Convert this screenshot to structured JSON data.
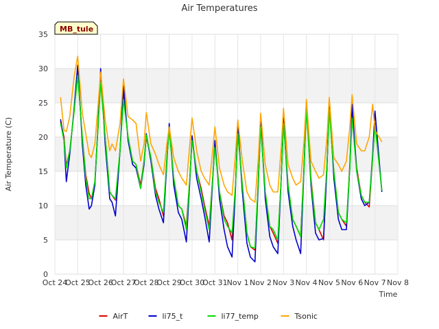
{
  "chart_data": {
    "type": "line",
    "title": "Air Temperatures",
    "xlabel": "Time",
    "ylabel": "Air Temperature (C)",
    "ylim": [
      0,
      35
    ],
    "yticks": [
      0,
      5,
      10,
      15,
      20,
      25,
      30,
      35
    ],
    "xticks": [
      "Oct 24",
      "Oct 25",
      "Oct 26",
      "Oct 27",
      "Oct 28",
      "Oct 29",
      "Oct 30",
      "Oct 31",
      "Nov 1",
      "Nov 2",
      "Nov 3",
      "Nov 4",
      "Nov 5",
      "Nov 6",
      "Nov 7",
      "Nov 8"
    ],
    "x_unit": "days after Oct 24",
    "xlim": [
      0,
      15
    ],
    "grid": true,
    "alternating_bands": true,
    "legend_position": "bottom-center",
    "station_tag": "MB_tule",
    "series": [
      {
        "name": "AirT",
        "color": "#dd0000",
        "x": [
          0.25,
          0.4,
          0.5,
          0.65,
          0.85,
          1.0,
          1.2,
          1.35,
          1.5,
          1.6,
          1.75,
          1.9,
          2.0,
          2.2,
          2.4,
          2.5,
          2.65,
          2.85,
          3.0,
          3.2,
          3.4,
          3.55,
          3.75,
          3.9,
          4.0,
          4.2,
          4.4,
          4.55,
          4.75,
          4.9,
          5.0,
          5.2,
          5.4,
          5.55,
          5.75,
          5.9,
          6.0,
          6.2,
          6.4,
          6.55,
          6.75,
          6.9,
          7.0,
          7.2,
          7.4,
          7.55,
          7.75,
          7.9,
          8.0,
          8.2,
          8.4,
          8.55,
          8.75,
          8.9,
          9.0,
          9.2,
          9.4,
          9.55,
          9.75,
          9.9,
          10.0,
          10.2,
          10.4,
          10.55,
          10.75,
          10.9,
          11.0,
          11.2,
          11.4,
          11.55,
          11.75,
          11.9,
          12.0,
          12.2,
          12.4,
          12.55,
          12.75,
          12.9,
          13.0,
          13.2,
          13.4,
          13.55,
          13.75,
          13.9,
          14.0,
          14.3
        ],
        "values": [
          22.3,
          20.0,
          15.8,
          18.0,
          24.0,
          29.5,
          20.0,
          14.5,
          11.8,
          11.0,
          13.5,
          22.0,
          29.2,
          20.0,
          12.0,
          11.5,
          10.8,
          18.0,
          26.2,
          20.0,
          16.5,
          16.0,
          13.0,
          16.5,
          20.0,
          17.0,
          12.5,
          11.0,
          8.5,
          17.0,
          21.5,
          14.0,
          10.0,
          9.5,
          7.0,
          14.0,
          19.8,
          15.0,
          12.5,
          10.0,
          7.0,
          14.0,
          19.0,
          12.0,
          8.5,
          7.5,
          5.0,
          13.0,
          21.0,
          13.0,
          6.0,
          4.0,
          3.5,
          14.0,
          22.0,
          12.0,
          7.0,
          6.0,
          4.5,
          14.0,
          22.5,
          13.0,
          8.0,
          7.0,
          5.5,
          16.0,
          24.5,
          14.0,
          7.5,
          6.5,
          5.0,
          16.0,
          24.3,
          15.0,
          9.0,
          8.0,
          7.0,
          16.0,
          23.5,
          15.5,
          11.5,
          10.5,
          9.8,
          17.0,
          22.0,
          12.2
        ]
      },
      {
        "name": "li75_t",
        "color": "#0000cc",
        "x": [
          0.25,
          0.4,
          0.5,
          0.65,
          0.85,
          1.0,
          1.2,
          1.35,
          1.5,
          1.6,
          1.75,
          1.9,
          2.0,
          2.2,
          2.4,
          2.5,
          2.65,
          2.85,
          3.0,
          3.2,
          3.4,
          3.55,
          3.75,
          3.9,
          4.0,
          4.2,
          4.4,
          4.55,
          4.75,
          4.9,
          5.0,
          5.2,
          5.4,
          5.55,
          5.75,
          5.9,
          6.0,
          6.2,
          6.4,
          6.55,
          6.75,
          6.9,
          7.0,
          7.2,
          7.4,
          7.55,
          7.75,
          7.9,
          8.0,
          8.2,
          8.4,
          8.55,
          8.75,
          8.9,
          9.0,
          9.2,
          9.4,
          9.55,
          9.75,
          9.9,
          10.0,
          10.2,
          10.4,
          10.55,
          10.75,
          10.9,
          11.0,
          11.2,
          11.4,
          11.55,
          11.75,
          11.9,
          12.0,
          12.2,
          12.4,
          12.55,
          12.75,
          12.9,
          13.0,
          13.2,
          13.4,
          13.55,
          13.75,
          13.9,
          14.0,
          14.3
        ],
        "values": [
          22.6,
          19.5,
          13.5,
          17.5,
          24.5,
          30.5,
          19.0,
          13.0,
          9.5,
          10.0,
          13.0,
          22.5,
          30.0,
          19.0,
          11.0,
          10.5,
          8.5,
          18.0,
          27.5,
          19.5,
          16.0,
          15.5,
          12.5,
          16.0,
          20.5,
          16.5,
          11.5,
          9.5,
          7.5,
          16.5,
          22.0,
          13.0,
          9.0,
          8.0,
          4.7,
          13.5,
          20.2,
          14.0,
          11.0,
          8.5,
          4.7,
          13.5,
          19.5,
          11.0,
          6.5,
          4.0,
          2.5,
          12.5,
          21.8,
          12.0,
          4.5,
          2.5,
          1.8,
          13.5,
          22.5,
          11.0,
          5.5,
          4.0,
          3.0,
          14.0,
          22.8,
          12.0,
          7.0,
          5.0,
          3.0,
          15.5,
          25.2,
          13.0,
          6.0,
          5.0,
          5.2,
          15.5,
          25.4,
          14.0,
          8.0,
          6.5,
          6.5,
          15.5,
          24.8,
          15.0,
          11.0,
          10.0,
          10.5,
          17.5,
          23.8,
          12.0
        ]
      },
      {
        "name": "li77_temp",
        "color": "#00dd00",
        "x": [
          0.25,
          0.4,
          0.5,
          0.65,
          0.85,
          1.0,
          1.2,
          1.35,
          1.5,
          1.6,
          1.75,
          1.9,
          2.0,
          2.2,
          2.4,
          2.5,
          2.65,
          2.85,
          3.0,
          3.2,
          3.4,
          3.55,
          3.75,
          3.9,
          4.0,
          4.2,
          4.4,
          4.55,
          4.75,
          4.9,
          5.0,
          5.2,
          5.4,
          5.55,
          5.75,
          5.9,
          6.0,
          6.2,
          6.4,
          6.55,
          6.75,
          6.9,
          7.0,
          7.2,
          7.4,
          7.55,
          7.75,
          7.9,
          8.0,
          8.2,
          8.4,
          8.55,
          8.75,
          8.9,
          9.0,
          9.2,
          9.4,
          9.55,
          9.75,
          9.9,
          10.0,
          10.2,
          10.4,
          10.55,
          10.75,
          10.9,
          11.0,
          11.2,
          11.4,
          11.55,
          11.75,
          11.9,
          12.0,
          12.2,
          12.4,
          12.55,
          12.75,
          12.9,
          13.0,
          13.2,
          13.4,
          13.55,
          13.75,
          13.9,
          14.0,
          14.3
        ],
        "values": [
          22.0,
          19.5,
          15.5,
          18.0,
          24.0,
          29.0,
          20.0,
          14.0,
          11.0,
          11.0,
          13.5,
          22.0,
          28.0,
          20.0,
          12.0,
          11.5,
          11.0,
          18.0,
          25.5,
          20.0,
          16.5,
          16.0,
          12.5,
          16.5,
          20.3,
          17.0,
          12.0,
          10.5,
          9.0,
          17.0,
          21.0,
          14.0,
          10.0,
          9.5,
          6.5,
          14.0,
          19.5,
          15.0,
          12.0,
          9.5,
          6.5,
          14.0,
          18.5,
          12.0,
          8.0,
          7.0,
          6.0,
          13.0,
          20.5,
          13.0,
          6.0,
          4.0,
          3.8,
          14.0,
          21.5,
          12.0,
          7.0,
          6.5,
          5.0,
          14.0,
          22.0,
          13.0,
          8.0,
          7.0,
          5.5,
          15.5,
          24.0,
          13.5,
          7.5,
          6.5,
          8.0,
          16.0,
          24.0,
          15.0,
          9.0,
          8.0,
          7.5,
          15.5,
          22.8,
          15.0,
          11.5,
          10.5,
          10.5,
          17.0,
          21.8,
          12.2
        ]
      },
      {
        "name": "Tsonic",
        "color": "#ffa500",
        "x": [
          0.25,
          0.4,
          0.5,
          0.65,
          0.85,
          1.0,
          1.2,
          1.35,
          1.5,
          1.6,
          1.75,
          1.9,
          2.0,
          2.2,
          2.4,
          2.5,
          2.65,
          2.85,
          3.0,
          3.2,
          3.4,
          3.55,
          3.75,
          3.9,
          4.0,
          4.2,
          4.4,
          4.55,
          4.75,
          4.9,
          5.0,
          5.2,
          5.4,
          5.55,
          5.75,
          5.9,
          6.0,
          6.2,
          6.4,
          6.55,
          6.75,
          6.9,
          7.0,
          7.2,
          7.4,
          7.55,
          7.75,
          7.9,
          8.0,
          8.2,
          8.4,
          8.55,
          8.75,
          8.9,
          9.0,
          9.2,
          9.4,
          9.55,
          9.75,
          9.9,
          10.0,
          10.2,
          10.4,
          10.55,
          10.75,
          10.9,
          11.0,
          11.2,
          11.4,
          11.55,
          11.75,
          11.9,
          12.0,
          12.2,
          12.4,
          12.55,
          12.75,
          12.9,
          13.0,
          13.2,
          13.4,
          13.55,
          13.75,
          13.9,
          14.0,
          14.3
        ],
        "values": [
          25.8,
          21.0,
          20.8,
          23.0,
          29.0,
          31.8,
          23.5,
          20.5,
          17.5,
          17.0,
          19.0,
          25.0,
          29.5,
          22.5,
          18.0,
          19.0,
          18.0,
          22.0,
          28.5,
          23.0,
          22.5,
          22.0,
          16.5,
          19.0,
          23.6,
          19.0,
          17.5,
          16.0,
          14.5,
          19.0,
          21.5,
          17.0,
          15.0,
          14.0,
          13.0,
          19.0,
          22.8,
          18.0,
          15.0,
          14.0,
          13.0,
          18.0,
          21.5,
          15.5,
          13.0,
          12.0,
          11.5,
          17.5,
          22.5,
          16.5,
          12.0,
          11.0,
          10.5,
          17.0,
          23.5,
          16.0,
          13.0,
          12.0,
          12.0,
          18.5,
          24.2,
          16.0,
          14.0,
          13.0,
          13.5,
          19.5,
          25.5,
          16.5,
          15.0,
          14.0,
          14.5,
          20.0,
          25.8,
          17.0,
          16.0,
          15.0,
          16.5,
          21.5,
          26.2,
          19.0,
          18.0,
          18.0,
          20.0,
          24.8,
          21.0,
          19.3
        ]
      }
    ]
  }
}
